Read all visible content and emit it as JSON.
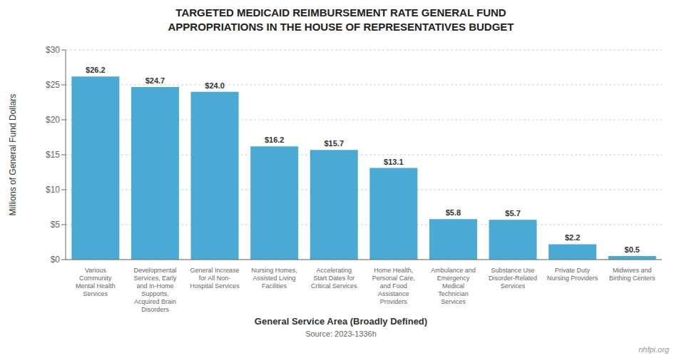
{
  "chart_data": {
    "type": "bar",
    "title": "TARGETED MEDICAID REIMBURSEMENT RATE GENERAL FUND\nAPPROPRIATIONS IN THE HOUSE OF REPRESENTATIVES BUDGET",
    "xlabel": "General Service Area (Broadly Defined)",
    "ylabel": "Millions of General Fund Dollars",
    "annotations": [
      "Source: 2023-1336h",
      "nhfpi.org"
    ],
    "categories": [
      "Various\nCommunity\nMental Health\nServices",
      "Developmental\nServices, Early\nand In-Home\nSupports,\nAcquired Brain\nDisorders",
      "General Increase\nfor All Non-\nHospital Services",
      "Nursing Homes,\nAssisted Living\nFacilities",
      "Accelerating\nStart Dates for\nCritical Services",
      "Home Health,\nPersonal Care,\nand Food\nAssistance\nProviders",
      "Ambulance and\nEmergency\nMedical\nTechnician\nServices",
      "Substance Use\nDisorder-Related\nServices",
      "Private Duty\nNursing Providers",
      "Midwives and\nBirthing Centers"
    ],
    "values": [
      26.2,
      24.7,
      24.0,
      16.2,
      15.7,
      13.1,
      5.8,
      5.7,
      2.2,
      0.5
    ],
    "value_labels": [
      "$26.2",
      "$24.7",
      "$24.0",
      "$16.2",
      "$15.7",
      "$13.1",
      "$5.8",
      "$5.7",
      "$2.2",
      "$0.5"
    ],
    "data_labels": true,
    "color": "#4baad3",
    "ylim": [
      0,
      30
    ],
    "yticks": [
      {
        "value": 0,
        "label": "$0"
      },
      {
        "value": 5,
        "label": "$5"
      },
      {
        "value": 10,
        "label": "$10"
      },
      {
        "value": 15,
        "label": "$15"
      },
      {
        "value": 20,
        "label": "$20"
      },
      {
        "value": 25,
        "label": "$25"
      },
      {
        "value": 30,
        "label": "$30"
      }
    ],
    "grid": true
  }
}
